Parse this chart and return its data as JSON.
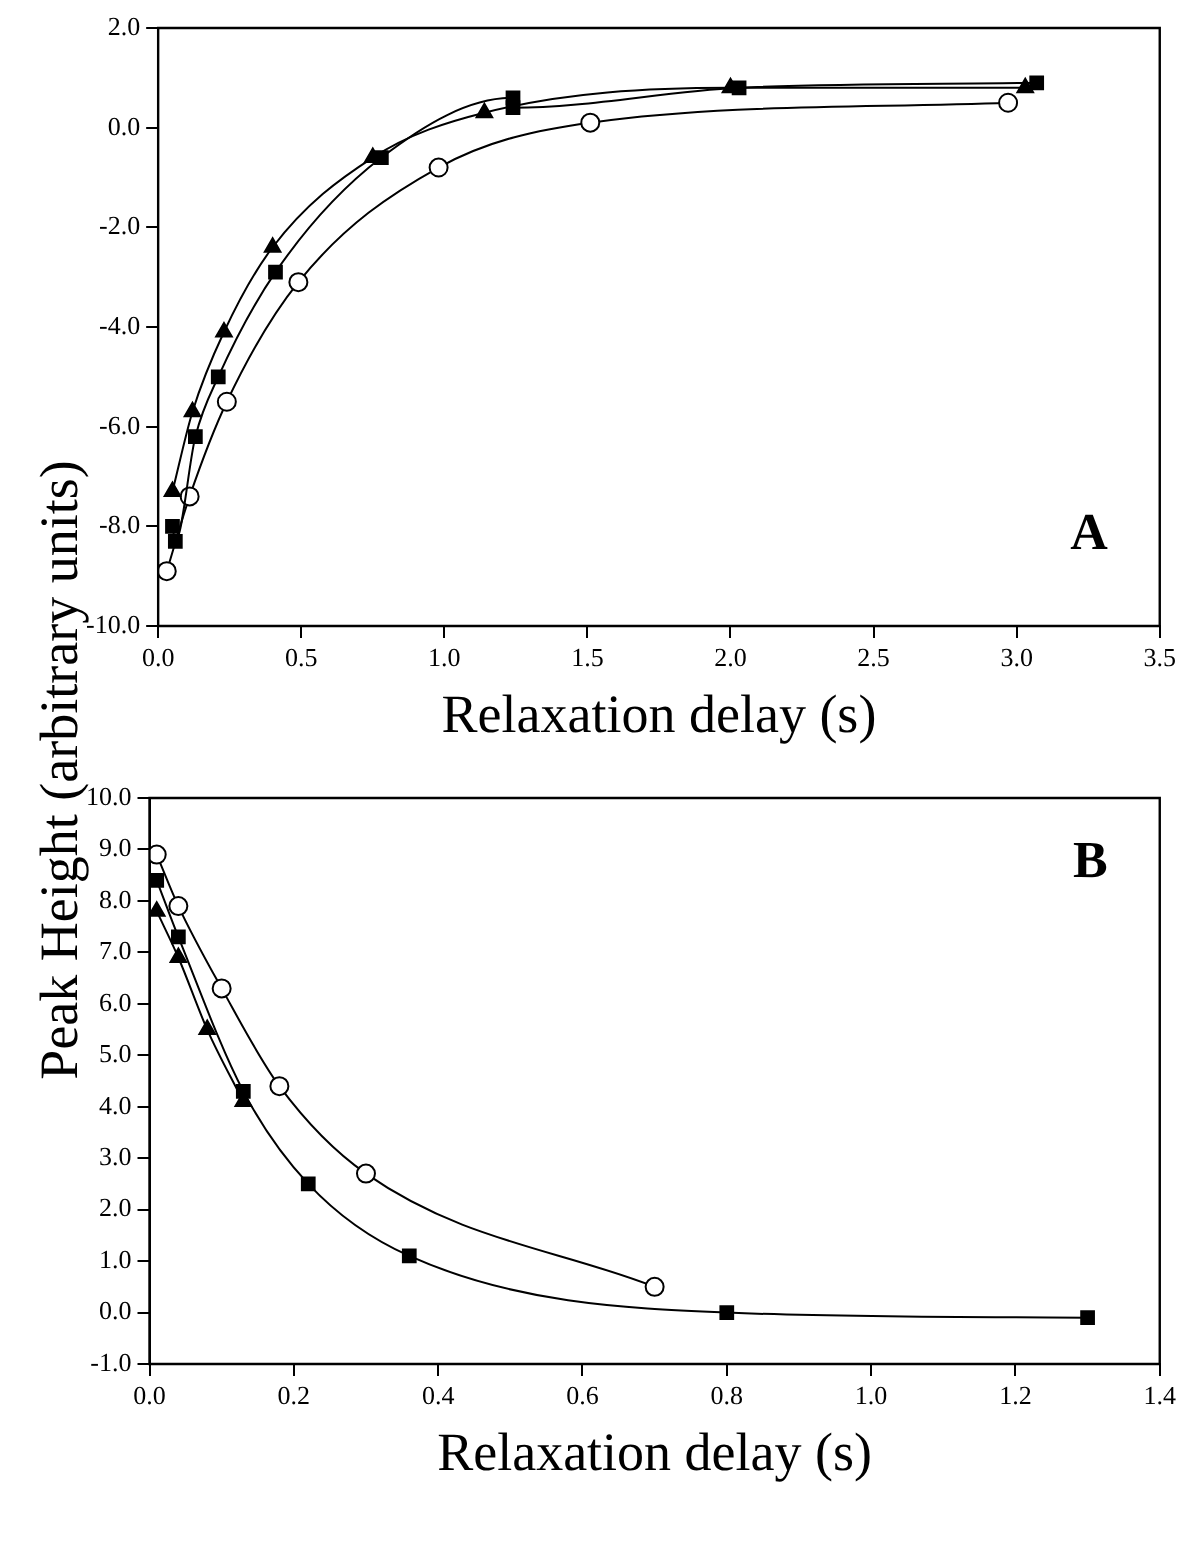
{
  "chart_data": [
    {
      "type": "line",
      "xlabel": "Relaxation delay (s)",
      "ylabel": "Peak Height (arbitrary units)",
      "annotations": [
        "A"
      ],
      "grid": false,
      "legend": false,
      "line_style": "solid",
      "xlim": [
        0,
        3.5
      ],
      "xticks": [
        {
          "value": 0,
          "label": "0.0"
        },
        {
          "value": 0.5,
          "label": "0.5"
        },
        {
          "value": 1,
          "label": "1.0"
        },
        {
          "value": 1.5,
          "label": "1.5"
        },
        {
          "value": 2,
          "label": "2.0"
        },
        {
          "value": 2.5,
          "label": "2.5"
        },
        {
          "value": 3,
          "label": "3.0"
        },
        {
          "value": 3.5,
          "label": "3.5"
        }
      ],
      "ylim": [
        -10,
        2
      ],
      "yticks": [
        {
          "value": -10,
          "label": "-10.0"
        },
        {
          "value": -8,
          "label": "-8.0"
        },
        {
          "value": -6,
          "label": "-6.0"
        },
        {
          "value": -4,
          "label": "-4.0"
        },
        {
          "value": -2,
          "label": "-2.0"
        },
        {
          "value": 0,
          "label": "0.0"
        },
        {
          "value": 2,
          "label": "2.0"
        }
      ],
      "series": [
        {
          "color": "#000000",
          "marker": "triangle",
          "x": [
            0.05,
            0.12,
            0.23,
            0.4,
            0.75,
            1.14,
            2.0,
            3.03
          ],
          "values": [
            -7.3,
            -5.7,
            -4.1,
            -2.4,
            -0.6,
            0.3,
            0.8,
            0.8
          ]
        },
        {
          "color": "#000000",
          "marker": "square",
          "x": [
            0.05,
            0.06,
            0.13,
            0.21,
            0.41,
            0.78,
            1.24,
            1.24,
            2.03,
            3.07
          ],
          "values": [
            -8.0,
            -8.3,
            -6.2,
            -5.0,
            -2.9,
            -0.6,
            0.6,
            0.4,
            0.8,
            0.9
          ]
        },
        {
          "color": "#000000",
          "marker": "circle",
          "x": [
            0.03,
            0.11,
            0.24,
            0.49,
            0.98,
            1.51,
            2.97
          ],
          "values": [
            -8.9,
            -7.4,
            -5.5,
            -3.1,
            -0.8,
            0.1,
            0.5
          ]
        }
      ]
    },
    {
      "type": "line",
      "xlabel": "Relaxation delay (s)",
      "annotations": [
        "B"
      ],
      "grid": false,
      "legend": false,
      "line_style": "solid",
      "xlim": [
        0,
        1.4
      ],
      "xticks": [
        {
          "value": 0,
          "label": "0.0"
        },
        {
          "value": 0.2,
          "label": "0.2"
        },
        {
          "value": 0.4,
          "label": "0.4"
        },
        {
          "value": 0.6,
          "label": "0.6"
        },
        {
          "value": 0.8,
          "label": "0.8"
        },
        {
          "value": 1,
          "label": "1.0"
        },
        {
          "value": 1.2,
          "label": "1.2"
        },
        {
          "value": 1.4,
          "label": "1.4"
        }
      ],
      "ylim": [
        -1,
        10
      ],
      "yticks": [
        {
          "value": -1,
          "label": "-1.0"
        },
        {
          "value": 0,
          "label": "0.0"
        },
        {
          "value": 1,
          "label": "1.0"
        },
        {
          "value": 2,
          "label": "2.0"
        },
        {
          "value": 3,
          "label": "3.0"
        },
        {
          "value": 4,
          "label": "4.0"
        },
        {
          "value": 5,
          "label": "5.0"
        },
        {
          "value": 6,
          "label": "6.0"
        },
        {
          "value": 7,
          "label": "7.0"
        },
        {
          "value": 8,
          "label": "8.0"
        },
        {
          "value": 9,
          "label": "9.0"
        },
        {
          "value": 10,
          "label": "10.0"
        }
      ],
      "series": [
        {
          "color": "#000000",
          "marker": "triangle",
          "x": [
            0.01,
            0.04,
            0.08,
            0.13
          ],
          "values": [
            7.8,
            6.9,
            5.5,
            4.1
          ]
        },
        {
          "color": "#000000",
          "marker": "square",
          "x": [
            0.01,
            0.04,
            0.13,
            0.22,
            0.36,
            0.8,
            1.3
          ],
          "values": [
            8.4,
            7.3,
            4.3,
            2.5,
            1.1,
            0.0,
            -0.1
          ]
        },
        {
          "color": "#000000",
          "marker": "circle",
          "x": [
            0.01,
            0.04,
            0.1,
            0.18,
            0.3,
            0.7
          ],
          "values": [
            8.9,
            7.9,
            6.3,
            4.4,
            2.7,
            0.5
          ]
        }
      ]
    }
  ]
}
